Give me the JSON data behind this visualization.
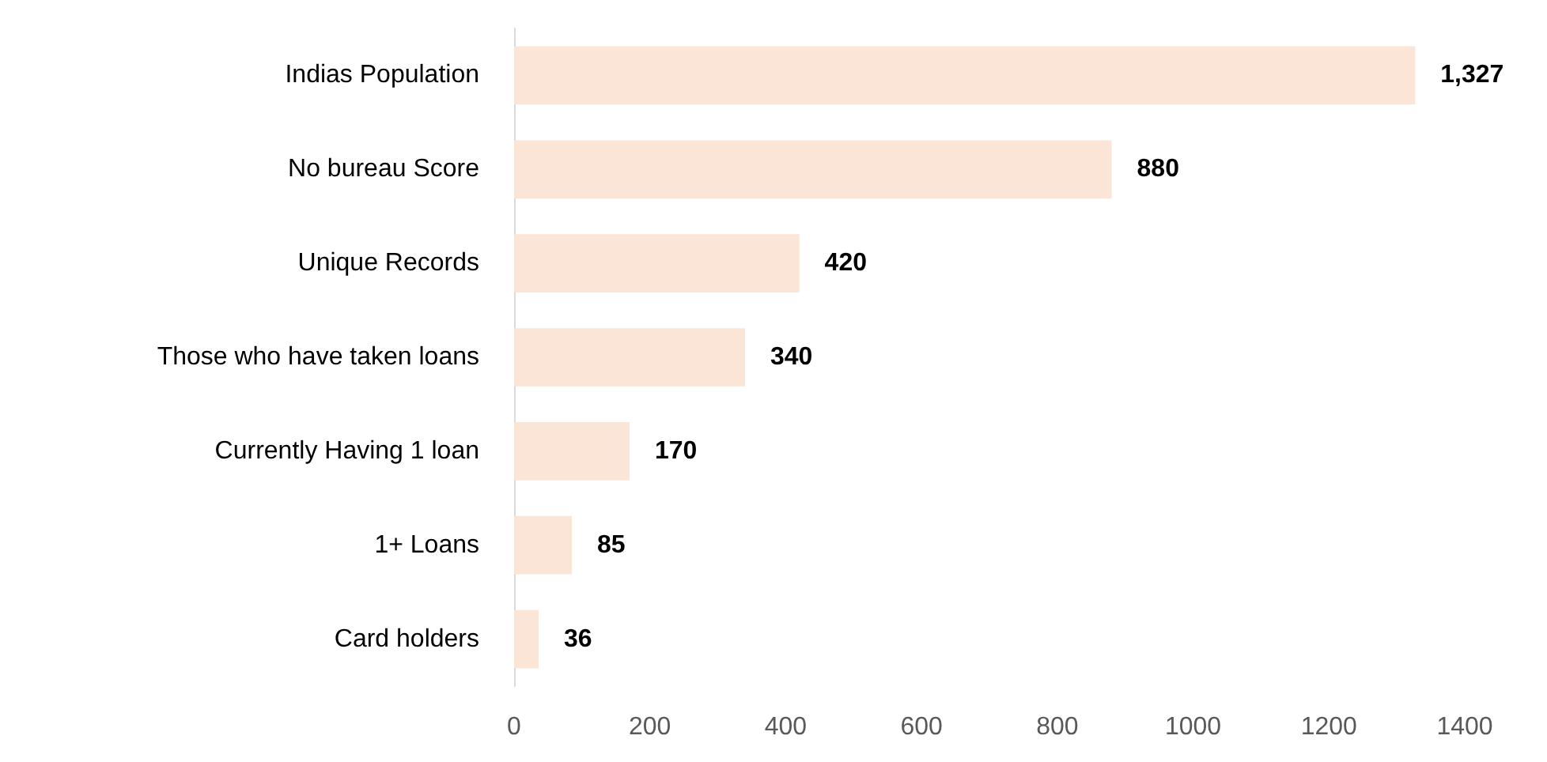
{
  "chart_data": {
    "type": "bar",
    "orientation": "horizontal",
    "categories": [
      "Indias Population",
      "No bureau Score",
      "Unique Records",
      "Those who have taken loans",
      "Currently Having 1 loan",
      "1+ Loans",
      "Card holders"
    ],
    "values": [
      1327,
      880,
      420,
      340,
      170,
      85,
      36
    ],
    "value_labels": [
      "1,327",
      "880",
      "420",
      "340",
      "170",
      "85",
      "36"
    ],
    "color": "#fbe5d6",
    "xlim": [
      0,
      1400
    ],
    "xticks": [
      0,
      200,
      400,
      600,
      800,
      1000,
      1200,
      1400
    ],
    "grid": false
  }
}
